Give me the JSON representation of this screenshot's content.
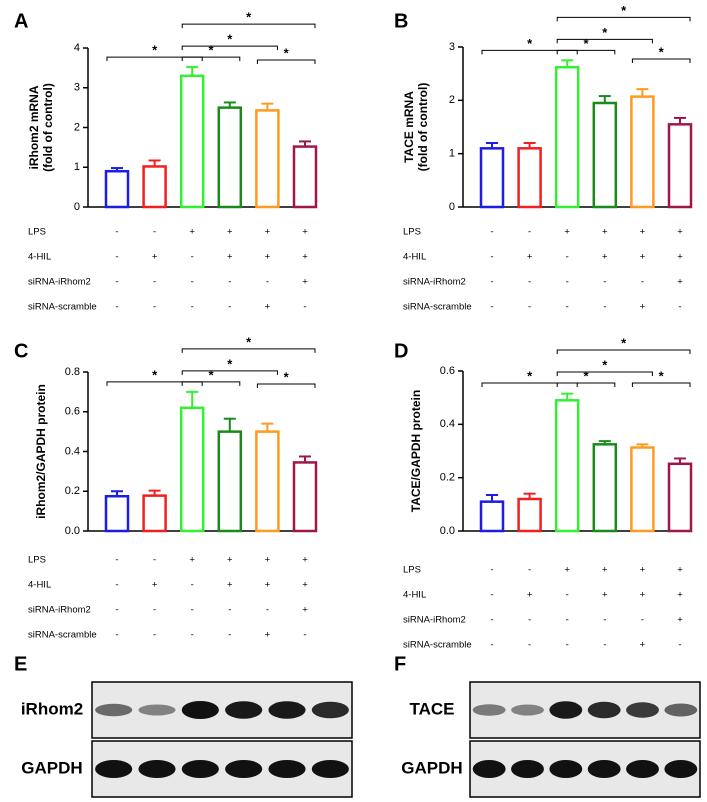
{
  "chart_data": [
    {
      "type": "bar",
      "panel": "A",
      "ylabel": [
        "iRhom2 mRNA",
        "(fold of control)"
      ],
      "values": [
        0.9,
        1.02,
        3.3,
        2.5,
        2.43,
        1.52
      ],
      "errors": [
        0.08,
        0.15,
        0.22,
        0.13,
        0.17,
        0.13
      ],
      "colors": [
        "#1c1ce6",
        "#f02020",
        "#33f033",
        "#1a8a1a",
        "#ff9a20",
        "#a0164a"
      ],
      "ylim": [
        0,
        4
      ],
      "yticks": [
        0,
        1,
        2,
        3,
        4
      ],
      "significance": [
        {
          "pair": [
            0,
            2
          ],
          "label": "*"
        },
        {
          "pair": [
            2,
            3
          ],
          "label": "*"
        },
        {
          "pair": [
            2,
            4
          ],
          "label": "*"
        },
        {
          "pair": [
            2,
            5
          ],
          "label": "*"
        },
        {
          "pair": [
            4,
            5
          ],
          "label": "*"
        }
      ],
      "conditions": [
        {
          "name": "LPS",
          "marks": [
            "-",
            "-",
            "+",
            "+",
            "+",
            "+"
          ]
        },
        {
          "name": "4-HIL",
          "marks": [
            "-",
            "+",
            "-",
            "+",
            "+",
            "+"
          ]
        },
        {
          "name": "siRNA-iRhom2",
          "marks": [
            "-",
            "-",
            "-",
            "-",
            "-",
            "+"
          ]
        },
        {
          "name": "siRNA-scramble",
          "marks": [
            "-",
            "-",
            "-",
            "-",
            "+",
            "-"
          ]
        }
      ]
    },
    {
      "type": "bar",
      "panel": "B",
      "ylabel": [
        "TACE mRNA",
        "(fold of control)"
      ],
      "values": [
        1.1,
        1.1,
        2.62,
        1.95,
        2.07,
        1.55
      ],
      "errors": [
        0.1,
        0.1,
        0.13,
        0.13,
        0.14,
        0.12
      ],
      "colors": [
        "#1c1ce6",
        "#f02020",
        "#33f033",
        "#1a8a1a",
        "#ff9a20",
        "#a0164a"
      ],
      "ylim": [
        0,
        3
      ],
      "yticks": [
        0,
        1,
        2,
        3
      ],
      "significance": [
        {
          "pair": [
            0,
            2
          ],
          "label": "*"
        },
        {
          "pair": [
            2,
            3
          ],
          "label": "*"
        },
        {
          "pair": [
            2,
            4
          ],
          "label": "*"
        },
        {
          "pair": [
            2,
            5
          ],
          "label": "*"
        },
        {
          "pair": [
            4,
            5
          ],
          "label": "*"
        }
      ],
      "conditions": [
        {
          "name": "LPS",
          "marks": [
            "-",
            "-",
            "+",
            "+",
            "+",
            "+"
          ]
        },
        {
          "name": "4-HIL",
          "marks": [
            "-",
            "+",
            "-",
            "+",
            "+",
            "+"
          ]
        },
        {
          "name": "siRNA-iRhom2",
          "marks": [
            "-",
            "-",
            "-",
            "-",
            "-",
            "+"
          ]
        },
        {
          "name": "siRNA-scramble",
          "marks": [
            "-",
            "-",
            "-",
            "-",
            "+",
            "-"
          ]
        }
      ]
    },
    {
      "type": "bar",
      "panel": "C",
      "ylabel": [
        "iRhom2/GAPDH protein"
      ],
      "values": [
        0.175,
        0.178,
        0.62,
        0.5,
        0.5,
        0.345
      ],
      "errors": [
        0.025,
        0.025,
        0.08,
        0.065,
        0.04,
        0.03
      ],
      "colors": [
        "#1c1ce6",
        "#f02020",
        "#33f033",
        "#1a8a1a",
        "#ff9a20",
        "#a0164a"
      ],
      "ylim": [
        0,
        0.8
      ],
      "yticks": [
        {
          "value": 0,
          "label": "0.0"
        },
        0.2,
        0.4,
        0.6,
        0.8
      ],
      "significance": [
        {
          "pair": [
            0,
            2
          ],
          "label": "*"
        },
        {
          "pair": [
            2,
            3
          ],
          "label": "*"
        },
        {
          "pair": [
            2,
            4
          ],
          "label": "*"
        },
        {
          "pair": [
            2,
            5
          ],
          "label": "*"
        },
        {
          "pair": [
            4,
            5
          ],
          "label": "*"
        }
      ],
      "conditions": [
        {
          "name": "LPS",
          "marks": [
            "-",
            "-",
            "+",
            "+",
            "+",
            "+"
          ]
        },
        {
          "name": "4-HIL",
          "marks": [
            "-",
            "+",
            "-",
            "+",
            "+",
            "+"
          ]
        },
        {
          "name": "siRNA-iRhom2",
          "marks": [
            "-",
            "-",
            "-",
            "-",
            "-",
            "+"
          ]
        },
        {
          "name": "siRNA-scramble",
          "marks": [
            "-",
            "-",
            "-",
            "-",
            "+",
            "-"
          ]
        }
      ]
    },
    {
      "type": "bar",
      "panel": "D",
      "ylabel": [
        "TACE/GAPDH protein"
      ],
      "values": [
        0.11,
        0.12,
        0.49,
        0.325,
        0.313,
        0.252
      ],
      "errors": [
        0.025,
        0.02,
        0.025,
        0.012,
        0.012,
        0.02
      ],
      "colors": [
        "#1c1ce6",
        "#f02020",
        "#33f033",
        "#1a8a1a",
        "#ff9a20",
        "#a0164a"
      ],
      "ylim": [
        0,
        0.6
      ],
      "yticks": [
        {
          "value": 0,
          "label": "0.0"
        },
        0.2,
        0.4,
        0.6
      ],
      "significance": [
        {
          "pair": [
            0,
            2
          ],
          "label": "*"
        },
        {
          "pair": [
            2,
            3
          ],
          "label": "*"
        },
        {
          "pair": [
            2,
            4
          ],
          "label": "*"
        },
        {
          "pair": [
            2,
            5
          ],
          "label": "*"
        },
        {
          "pair": [
            4,
            5
          ],
          "label": "*"
        }
      ],
      "conditions": [
        {
          "name": "LPS",
          "marks": [
            "-",
            "-",
            "+",
            "+",
            "+",
            "+"
          ]
        },
        {
          "name": "4-HIL",
          "marks": [
            "-",
            "+",
            "-",
            "+",
            "+",
            "+"
          ]
        },
        {
          "name": "siRNA-iRhom2",
          "marks": [
            "-",
            "-",
            "-",
            "-",
            "-",
            "+"
          ]
        },
        {
          "name": "siRNA-scramble",
          "marks": [
            "-",
            "-",
            "-",
            "-",
            "+",
            "-"
          ]
        }
      ]
    }
  ],
  "blots": [
    {
      "panel": "E",
      "rows": [
        "iRhom2",
        "GAPDH"
      ]
    },
    {
      "panel": "F",
      "rows": [
        "TACE",
        "GAPDH"
      ]
    }
  ]
}
